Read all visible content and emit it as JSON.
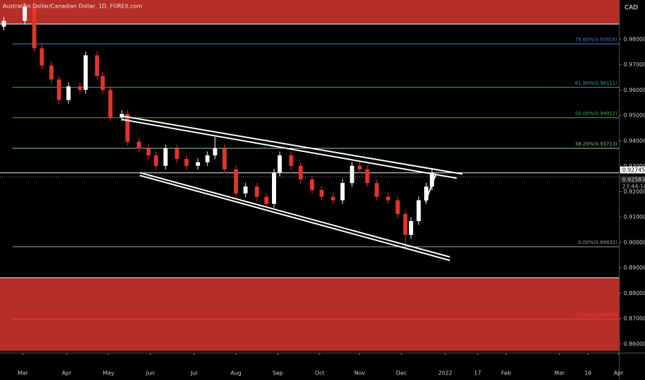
{
  "chart_data": {
    "type": "candlestick",
    "title": "Australian Dollar/Canadian Dollar, 1D, FOREX.com",
    "currency": "CAD",
    "x": [
      -10,
      1,
      6,
      10,
      15,
      19,
      24,
      30,
      33,
      39,
      42,
      46,
      52,
      55,
      61,
      66,
      70,
      75,
      81,
      86,
      92,
      97,
      101,
      106,
      112,
      117,
      123,
      128,
      132,
      135,
      141,
      146,
      152,
      157,
      163,
      168,
      173,
      177,
      181,
      186,
      192,
      197,
      201,
      204,
      208,
      212,
      215
    ],
    "open": [
      0.985,
      0.9873,
      0.9928,
      0.9765,
      0.9697,
      0.9642,
      0.9561,
      0.9615,
      0.9601,
      0.9737,
      0.9656,
      0.9601,
      0.9493,
      0.9506,
      0.9397,
      0.937,
      0.9343,
      0.9302,
      0.937,
      0.9329,
      0.9302,
      0.9316,
      0.9343,
      0.937,
      0.9288,
      0.9193,
      0.922,
      0.918,
      0.9152,
      0.9275,
      0.9343,
      0.9302,
      0.9248,
      0.9207,
      0.918,
      0.9166,
      0.9234,
      0.9302,
      0.9288,
      0.9234,
      0.918,
      0.9166,
      0.9112,
      0.903,
      0.9084,
      0.9166,
      0.922
    ],
    "high": [
      0.9888,
      0.9943,
      0.9943,
      0.978,
      0.9712,
      0.9657,
      0.963,
      0.963,
      0.9752,
      0.9752,
      0.9671,
      0.9616,
      0.9521,
      0.9521,
      0.9412,
      0.9385,
      0.9358,
      0.9385,
      0.9385,
      0.9344,
      0.9331,
      0.9358,
      0.9416,
      0.9385,
      0.9303,
      0.9235,
      0.9235,
      0.9195,
      0.929,
      0.9358,
      0.9358,
      0.9317,
      0.9263,
      0.9222,
      0.9195,
      0.9249,
      0.9317,
      0.9317,
      0.9303,
      0.9249,
      0.9195,
      0.9181,
      0.9127,
      0.9099,
      0.9181,
      0.9235,
      0.929
    ],
    "low": [
      0.9835,
      0.9858,
      0.975,
      0.9682,
      0.9627,
      0.9546,
      0.9546,
      0.9586,
      0.9586,
      0.9641,
      0.9586,
      0.9478,
      0.9478,
      0.9382,
      0.9355,
      0.9328,
      0.9287,
      0.9287,
      0.9314,
      0.9287,
      0.9287,
      0.9301,
      0.9328,
      0.9273,
      0.9178,
      0.9178,
      0.9165,
      0.9137,
      0.9137,
      0.926,
      0.9287,
      0.9233,
      0.9192,
      0.9165,
      0.9151,
      0.9151,
      0.9219,
      0.9273,
      0.9219,
      0.9165,
      0.9151,
      0.9097,
      0.8983,
      0.9015,
      0.9069,
      0.9151,
      0.9205
    ],
    "close": [
      0.9873,
      0.9928,
      0.9765,
      0.9697,
      0.9642,
      0.9561,
      0.9615,
      0.9601,
      0.9737,
      0.9656,
      0.9601,
      0.9493,
      0.9506,
      0.9397,
      0.937,
      0.9343,
      0.9302,
      0.937,
      0.9329,
      0.9302,
      0.9316,
      0.9343,
      0.937,
      0.9288,
      0.9193,
      0.922,
      0.918,
      0.9152,
      0.9275,
      0.9343,
      0.9302,
      0.9248,
      0.9207,
      0.918,
      0.9166,
      0.9234,
      0.9302,
      0.9288,
      0.9234,
      0.918,
      0.9166,
      0.9112,
      0.903,
      0.9084,
      0.9166,
      0.922,
      0.9275
    ],
    "up_color": "#ffffff",
    "down_color": "#e0352b",
    "xlim": [
      -12,
      313.5
    ],
    "ylim": [
      0.8567,
      0.9955
    ],
    "xticks": [
      {
        "value": 0,
        "label": "Mar"
      },
      {
        "value": 23,
        "label": "Apr"
      },
      {
        "value": 45,
        "label": "May"
      },
      {
        "value": 67,
        "label": "Jun"
      },
      {
        "value": 90,
        "label": "Jul"
      },
      {
        "value": 112,
        "label": "Aug"
      },
      {
        "value": 134,
        "label": "Sep"
      },
      {
        "value": 156,
        "label": "Oct"
      },
      {
        "value": 177,
        "label": "Nov"
      },
      {
        "value": 199,
        "label": "Dec"
      },
      {
        "value": 222,
        "label": "2022"
      },
      {
        "value": 239,
        "label": "17"
      },
      {
        "value": 254,
        "label": "Feb"
      },
      {
        "value": 282,
        "label": "Mar"
      },
      {
        "value": 297,
        "label": "16"
      },
      {
        "value": 313,
        "label": "Apr"
      }
    ],
    "yticks": [
      {
        "value": 0.98,
        "label": "0.98000"
      },
      {
        "value": 0.97,
        "label": "0.97000"
      },
      {
        "value": 0.96,
        "label": "0.96000"
      },
      {
        "value": 0.95,
        "label": "0.95000"
      },
      {
        "value": 0.94,
        "label": "0.94000"
      },
      {
        "value": 0.93,
        "label": "0.93000"
      },
      {
        "value": 0.92,
        "label": "0.92000"
      },
      {
        "value": 0.91,
        "label": "0.91000"
      },
      {
        "value": 0.9,
        "label": "0.90000"
      },
      {
        "value": 0.89,
        "label": "0.89000"
      },
      {
        "value": 0.88,
        "label": "0.88000"
      },
      {
        "value": 0.87,
        "label": "0.87000"
      },
      {
        "value": 0.86,
        "label": "0.86000"
      }
    ],
    "zones": [
      {
        "from": 0.986,
        "to": 0.9955,
        "color": "#b52e27"
      },
      {
        "from": 0.8573,
        "to": 0.8861,
        "color": "#b52e27"
      }
    ],
    "levels": [
      {
        "value": 0.97818,
        "label": "78.60%(0.97818)",
        "color": "#4a7fe0"
      },
      {
        "value": 0.96111,
        "label": "61.80%(0.96111)",
        "color": "#26a69a"
      },
      {
        "value": 0.94912,
        "label": "50.00%(0.94912)",
        "color": "#4caf50"
      },
      {
        "value": 0.93713,
        "label": "38.20%(0.93713)",
        "color": "#81c784"
      },
      {
        "value": 0.89832,
        "label": "0.00%(0.89832)",
        "color": "#9e9e9e"
      },
      {
        "value": 0.86979,
        "label": "-27.00%(0.86979)",
        "color": "#ff3b30"
      }
    ],
    "zone_edges": [
      0.986,
      0.8861
    ],
    "trendlines": [
      {
        "x": [
          52,
          231
        ],
        "y": [
          0.9498,
          0.92694
        ]
      },
      {
        "x": [
          52,
          228
        ],
        "y": [
          0.94844,
          0.92531
        ]
      },
      {
        "x": [
          61.5,
          224.4
        ],
        "y": [
          0.92748,
          0.89429
        ]
      },
      {
        "x": [
          61.5,
          224.4
        ],
        "y": [
          0.92639,
          0.89293
        ]
      },
      {
        "x": [
          211.6,
          217.1
        ],
        "y": [
          0.91605,
          0.92694
        ]
      }
    ],
    "price_markers": [
      {
        "value": 0.92745,
        "label": "0.92745"
      },
      {
        "value": 0.92583,
        "label": "0.92583"
      }
    ],
    "countdown": "23:44:10"
  }
}
